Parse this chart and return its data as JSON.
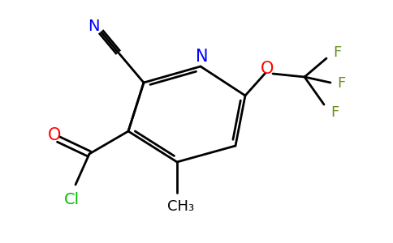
{
  "bg_color": "#ffffff",
  "bond_color": "#000000",
  "atom_colors": {
    "N_ring": "#0000ff",
    "N_cyano": "#0000ff",
    "O_ketone": "#ff0000",
    "O_ether": "#ff0000",
    "Cl": "#00bb00",
    "F": "#6b8e23",
    "C": "#000000"
  },
  "labels": {
    "N": "N",
    "N_cyano": "N",
    "O_ketone": "O",
    "O_ether": "O",
    "Cl": "Cl",
    "CH3": "CH₃",
    "F1": "F",
    "F2": "F",
    "F3": "F"
  },
  "figsize": [
    4.84,
    3.0
  ],
  "dpi": 100
}
